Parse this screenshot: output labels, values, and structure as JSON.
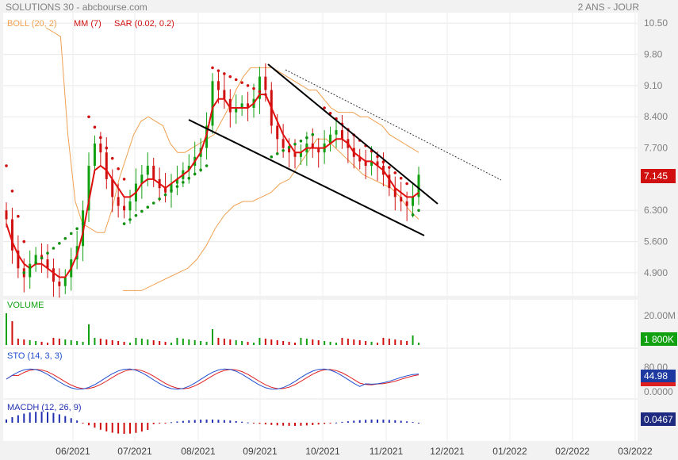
{
  "header": {
    "title": "SOLUTIONS 30 - abcbourse.com",
    "period": "2 ANS - JOUR"
  },
  "legend": {
    "boll": "BOLL (20, 2)",
    "mm": "MM (7)",
    "sar": "SAR (0.02, 0.2)"
  },
  "colors": {
    "boll": "#f0a050",
    "mm": "#e01010",
    "sar_up": "#109010",
    "sar_down": "#d01010",
    "candle_up": "#10a010",
    "candle_down": "#d01010",
    "sto_k": "#2050d0",
    "sto_d": "#e02020",
    "macd_pos": "#2030b0",
    "macd_neg": "#d01010"
  },
  "chart_data": {
    "type": "line",
    "x_labels": [
      "06/2021",
      "07/2021",
      "08/2021",
      "09/2021",
      "10/2021",
      "11/2021",
      "12/2021",
      "01/2022",
      "02/2022",
      "03/2022"
    ],
    "price": {
      "y_ticks": [
        "10.50",
        "9.80",
        "9.10",
        "8.400",
        "7.700",
        "6.300",
        "5.600",
        "4.900"
      ],
      "ylim": [
        4.4,
        10.7
      ],
      "last_value": "7.145",
      "closes": [
        6.1,
        5.4,
        5.0,
        4.8,
        5.1,
        5.3,
        5.2,
        5.0,
        4.7,
        4.6,
        4.8,
        5.2,
        5.5,
        6.3,
        7.3,
        7.8,
        7.6,
        7.0,
        6.6,
        6.4,
        6.3,
        6.5,
        6.9,
        7.1,
        7.3,
        7.0,
        6.8,
        6.7,
        6.9,
        7.0,
        7.2,
        7.3,
        7.5,
        7.7,
        8.2,
        9.2,
        9.0,
        8.8,
        8.5,
        8.6,
        8.7,
        8.6,
        8.8,
        9.3,
        9.0,
        8.2,
        7.9,
        7.7,
        7.6,
        7.5,
        7.6,
        7.8,
        7.7,
        7.6,
        7.8,
        8.0,
        8.1,
        7.9,
        7.7,
        7.5,
        7.4,
        7.3,
        7.4,
        7.3,
        7.1,
        6.8,
        6.6,
        6.5,
        6.4,
        6.6,
        7.1
      ],
      "mm7": [
        6.0,
        5.6,
        5.3,
        5.1,
        5.0,
        5.1,
        5.1,
        5.0,
        4.9,
        4.8,
        4.8,
        5.0,
        5.3,
        5.8,
        6.5,
        7.2,
        7.3,
        7.2,
        7.0,
        6.8,
        6.6,
        6.6,
        6.7,
        6.9,
        7.0,
        7.0,
        6.9,
        6.8,
        6.9,
        7.0,
        7.1,
        7.2,
        7.4,
        7.6,
        8.0,
        8.6,
        8.8,
        8.8,
        8.6,
        8.6,
        8.6,
        8.6,
        8.7,
        8.9,
        8.9,
        8.6,
        8.3,
        8.0,
        7.8,
        7.6,
        7.6,
        7.7,
        7.7,
        7.7,
        7.7,
        7.8,
        7.9,
        7.9,
        7.8,
        7.6,
        7.5,
        7.4,
        7.4,
        7.3,
        7.2,
        7.0,
        6.8,
        6.7,
        6.6,
        6.6,
        6.7
      ],
      "boll_upper": [
        10.4,
        10.3,
        10.2,
        8.0,
        6.5,
        6.0,
        5.9,
        5.8,
        5.8,
        6.3,
        7.0,
        7.5,
        8.0,
        8.3,
        8.4,
        8.3,
        8.2,
        7.8,
        7.6,
        7.6,
        7.7,
        7.8,
        7.9,
        8.0,
        8.3,
        8.6,
        9.0,
        9.3,
        9.5,
        9.5,
        9.5,
        9.5,
        9.4,
        9.3,
        9.2,
        9.1,
        9.0,
        9.0,
        8.8,
        8.6,
        8.5,
        8.5,
        8.5,
        8.4,
        8.4,
        8.3,
        8.2,
        8.0,
        7.9,
        7.8,
        7.7,
        7.6
      ],
      "boll_lower": [
        4.5,
        4.5,
        4.5,
        4.6,
        4.7,
        4.8,
        4.9,
        5.0,
        5.2,
        5.5,
        5.9,
        6.2,
        6.4,
        6.5,
        6.5,
        6.6,
        6.7,
        6.9,
        7.0,
        7.3,
        7.6,
        7.9,
        7.9,
        7.7,
        7.5,
        7.3,
        7.1,
        7.0,
        6.9,
        6.8,
        6.6,
        6.3,
        6.1
      ],
      "trendline_upper": [
        [
          9.6
        ],
        [
          6.4
        ]
      ],
      "trendline_lower": [
        [
          8.3
        ],
        [
          5.8
        ]
      ]
    },
    "volume": {
      "y_tick": "20.00M",
      "last_value": "1 800K"
    },
    "sto": {
      "label": "STO (14, 3, 3)",
      "y_ticks": [
        "80.00",
        "0.0000"
      ],
      "last_value": "44.98"
    },
    "macd": {
      "label": "MACDH (12, 26, 9)",
      "last_value": "0.0467"
    },
    "volume_label": "VOLUME"
  }
}
